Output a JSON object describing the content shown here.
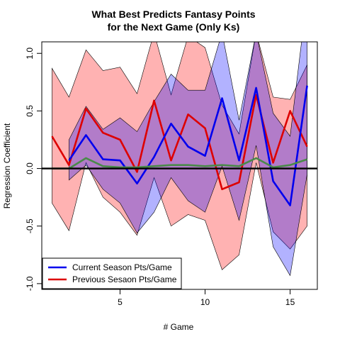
{
  "chart_data": {
    "type": "line",
    "title_line1": "What Best Predicts Fantasy Points",
    "title_line2": "for the Next Game (Only Ks)",
    "xlabel": "# Game",
    "ylabel": "Regression Coefficient",
    "xlim": [
      0.4,
      16.6
    ],
    "ylim": [
      -1.05,
      1.1
    ],
    "xticks": [
      5,
      10,
      15
    ],
    "yticks": [
      -1.0,
      -0.5,
      0.0,
      0.5,
      1.0
    ],
    "ytick_labels": [
      "-1.0",
      "-0.5",
      "0.0",
      "0.5",
      "1.0"
    ],
    "x": [
      1,
      2,
      3,
      4,
      5,
      6,
      7,
      8,
      9,
      10,
      11,
      12,
      13,
      14,
      15,
      16
    ],
    "bands": [
      {
        "name": "previous_ci",
        "color": "#ff0000",
        "opacity": 0.3,
        "x": [
          1,
          2,
          3,
          4,
          5,
          6,
          7,
          8,
          9,
          10,
          11,
          12,
          13,
          14,
          15,
          16
        ],
        "upper": [
          0.87,
          0.62,
          1.03,
          0.85,
          0.88,
          0.65,
          1.18,
          0.64,
          1.15,
          1.05,
          0.55,
          0.3,
          1.18,
          0.62,
          0.6,
          0.9
        ],
        "lower": [
          -0.3,
          -0.54,
          0.05,
          -0.25,
          -0.38,
          -0.58,
          -0.08,
          -0.5,
          -0.4,
          -0.45,
          -0.88,
          -0.75,
          0.05,
          -0.55,
          -0.7,
          -0.5
        ]
      },
      {
        "name": "current_ci",
        "color": "#0000ff",
        "opacity": 0.3,
        "x": [
          2,
          3,
          4,
          5,
          6,
          7,
          8,
          9,
          10,
          11,
          12,
          13,
          14,
          15,
          16
        ],
        "upper": [
          0.25,
          0.54,
          0.34,
          0.44,
          0.32,
          0.58,
          0.82,
          0.68,
          0.68,
          1.18,
          0.42,
          1.18,
          0.48,
          0.28,
          1.5
        ],
        "lower": [
          -0.1,
          0.03,
          -0.18,
          -0.3,
          -0.56,
          -0.38,
          -0.08,
          -0.28,
          -0.38,
          0.02,
          -0.45,
          0.2,
          -0.68,
          -0.93,
          -0.05
        ]
      }
    ],
    "series": [
      {
        "name": "Previous Sesaon Pts/Game",
        "color": "#dd0000",
        "values": [
          0.28,
          0.03,
          0.52,
          0.31,
          0.25,
          -0.03,
          0.59,
          0.07,
          0.47,
          0.35,
          -0.18,
          -0.12,
          0.64,
          0.05,
          0.5,
          0.19
        ]
      },
      {
        "name": "Current Season Pts/Game",
        "color": "#0000ee",
        "values": [
          null,
          0.07,
          0.29,
          0.08,
          0.07,
          -0.13,
          0.1,
          0.39,
          0.19,
          0.11,
          0.61,
          0.07,
          0.7,
          -0.11,
          -0.32,
          0.72
        ]
      },
      {
        "name": "other",
        "color": "#4a8a4a",
        "values": [
          0.0,
          0.0,
          0.09,
          0.02,
          0.01,
          0.01,
          0.02,
          0.03,
          0.03,
          0.02,
          0.03,
          0.02,
          0.09,
          0.01,
          0.03,
          0.08
        ]
      }
    ],
    "hline": {
      "y": 0,
      "color": "#000000"
    },
    "legend": {
      "position": "bottom-left",
      "entries": [
        {
          "label": "Current Season Pts/Game",
          "color": "#0000ee"
        },
        {
          "label": "Previous Sesaon Pts/Game",
          "color": "#dd0000"
        }
      ]
    }
  }
}
